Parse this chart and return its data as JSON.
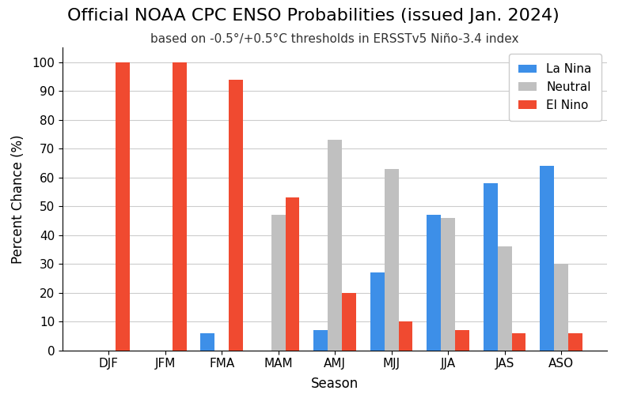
{
  "title": "Official NOAA CPC ENSO Probabilities (issued Jan. 2024)",
  "subtitle": "based on -0.5°/+0.5°C thresholds in ERSSTv5 Niño-3.4 index",
  "xlabel": "Season",
  "ylabel": "Percent Chance (%)",
  "seasons": [
    "DJF",
    "JFM",
    "FMA",
    "MAM",
    "AMJ",
    "MJJ",
    "JJA",
    "JAS",
    "ASO"
  ],
  "la_nina": [
    0,
    0,
    6,
    0,
    7,
    27,
    47,
    58,
    64
  ],
  "neutral": [
    0,
    0,
    0,
    47,
    73,
    63,
    46,
    36,
    30
  ],
  "el_nino": [
    100,
    100,
    94,
    53,
    20,
    10,
    7,
    6,
    6
  ],
  "la_nina_color": "#3d8fe8",
  "neutral_color": "#c0c0c0",
  "el_nino_color": "#f04a30",
  "ylim": [
    0,
    105
  ],
  "yticks": [
    0,
    10,
    20,
    30,
    40,
    50,
    60,
    70,
    80,
    90,
    100
  ],
  "title_fontsize": 16,
  "subtitle_fontsize": 11,
  "axis_label_fontsize": 12,
  "tick_fontsize": 11,
  "legend_fontsize": 11,
  "bar_width": 0.25,
  "background_color": "#ffffff",
  "grid_color": "#cccccc"
}
